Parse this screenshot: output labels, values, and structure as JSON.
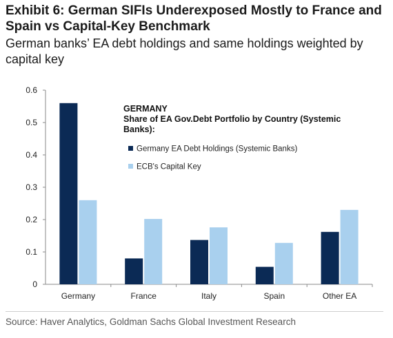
{
  "title": "Exhibit 6: German SIFIs Underexposed Mostly to France and Spain vs Capital-Key Benchmark",
  "subtitle": "German banks’ EA debt holdings and same holdings weighted by capital key",
  "source": "Source: Haver Analytics, Goldman Sachs Global Investment Research",
  "colors": {
    "series1": "#0b2a55",
    "series2": "#a9d0ee",
    "axis": "#8a8a8a",
    "text": "#222222"
  },
  "chart_data": {
    "type": "bar",
    "title": "GERMANY",
    "subtitle": "Share of EA Gov.Debt Portfolio by Country (Systemic Banks):",
    "categories": [
      "Germany",
      "France",
      "Italy",
      "Spain",
      "Other EA"
    ],
    "series": [
      {
        "name": "Germany EA Debt Holdings (Systemic Banks)",
        "values": [
          0.56,
          0.08,
          0.137,
          0.054,
          0.162
        ]
      },
      {
        "name": "ECB's Capital Key",
        "values": [
          0.26,
          0.202,
          0.176,
          0.128,
          0.23
        ]
      }
    ],
    "ylim": [
      0,
      0.6
    ],
    "yticks": [
      "0",
      "0.1",
      "0.2",
      "0.3",
      "0.4",
      "0.5",
      "0.6"
    ],
    "grid": false,
    "legend_position": "top-right"
  }
}
